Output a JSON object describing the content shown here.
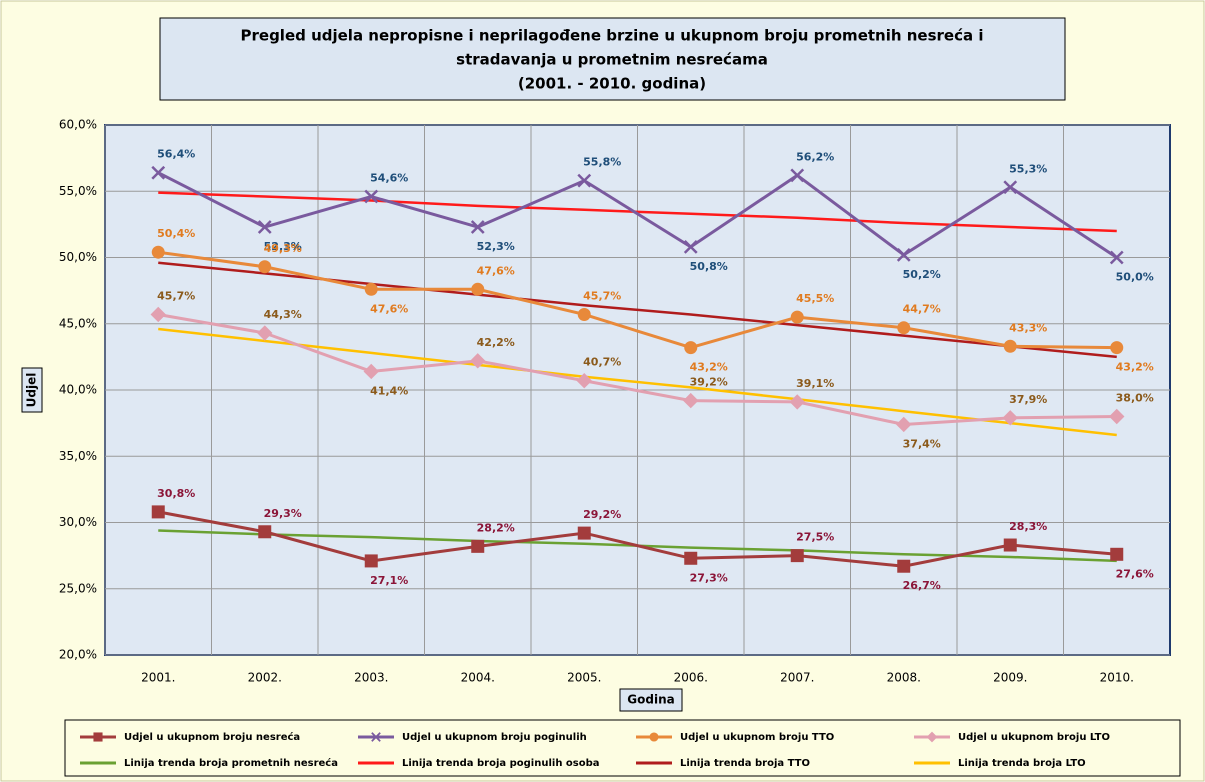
{
  "chart_data": {
    "type": "line",
    "title": "Pregled udjela nepropisne i neprilagođene brzine u ukupnom broju prometnih nesreća i",
    "title_line2": "stradavanja u prometnim nesrećama",
    "title_line3": "(2001. - 2010. godina)",
    "x_label": "Godina",
    "y_label": "Udjel",
    "categories": [
      "2001.",
      "2002.",
      "2003.",
      "2004.",
      "2005.",
      "2006.",
      "2007.",
      "2008.",
      "2009.",
      "2010."
    ],
    "ylim": [
      20,
      60
    ],
    "yticks": [
      {
        "value": 20,
        "label": "20,0%"
      },
      {
        "value": 25,
        "label": "25,0%"
      },
      {
        "value": 30,
        "label": "30,0%"
      },
      {
        "value": 35,
        "label": "35,0%"
      },
      {
        "value": 40,
        "label": "40,0%"
      },
      {
        "value": 45,
        "label": "45,0%"
      },
      {
        "value": 50,
        "label": "50,0%"
      },
      {
        "value": 55,
        "label": "55,0%"
      },
      {
        "value": 60,
        "label": "60,0%"
      }
    ],
    "grid": true,
    "legend": "bottom",
    "series": [
      {
        "name": "Udjel u ukupnom broju nesreća",
        "color": "#a33c3c",
        "marker": "square",
        "label_color": "#8b1538",
        "values": [
          30.8,
          29.3,
          27.1,
          28.2,
          29.2,
          27.3,
          27.5,
          26.7,
          28.3,
          27.6
        ],
        "value_labels": [
          "30,8%",
          "29,3%",
          "27,1%",
          "28,2%",
          "29,2%",
          "27,3%",
          "27,5%",
          "26,7%",
          "28,3%",
          "27,6%"
        ]
      },
      {
        "name": "Udjel u ukupnom broju poginulih",
        "color": "#7a5a9e",
        "marker": "x",
        "label_color": "#1f4e79",
        "values": [
          56.4,
          52.3,
          54.6,
          52.3,
          55.8,
          50.8,
          56.2,
          50.2,
          55.3,
          50.0
        ],
        "value_labels": [
          "56,4%",
          "52,3%",
          "54,6%",
          "52,3%",
          "55,8%",
          "50,8%",
          "56,2%",
          "50,2%",
          "55,3%",
          "50,0%"
        ]
      },
      {
        "name": "Udjel u ukupnom broju TTO",
        "color": "#e8893a",
        "marker": "circle",
        "label_color": "#e07b20",
        "values": [
          50.4,
          49.3,
          47.6,
          47.6,
          45.7,
          43.2,
          45.5,
          44.7,
          43.3,
          43.2
        ],
        "value_labels": [
          "50,4%",
          "49,3%",
          "47,6%",
          "47,6%",
          "45,7%",
          "43,2%",
          "45,5%",
          "44,7%",
          "43,3%",
          "43,2%"
        ]
      },
      {
        "name": "Udjel u ukupnom broju LTO",
        "color": "#e2a0b0",
        "marker": "diamond",
        "label_color": "#8b5a1b",
        "values": [
          45.7,
          44.3,
          41.4,
          42.2,
          40.7,
          39.2,
          39.1,
          37.4,
          37.9,
          38.0
        ],
        "value_labels": [
          "45,7%",
          "44,3%",
          "41,4%",
          "42,2%",
          "40,7%",
          "39,2%",
          "39,1%",
          "37,4%",
          "37,9%",
          "38,0%"
        ]
      },
      {
        "name": "Linija trenda broja prometnih nesreća",
        "color": "#6aa132",
        "values": [
          29.4,
          29.1,
          28.9,
          28.6,
          28.4,
          28.1,
          27.9,
          27.6,
          27.4,
          27.1
        ]
      },
      {
        "name": "Linija trenda broja poginulih osoba",
        "color": "#ff1a1a",
        "values": [
          54.9,
          54.6,
          54.3,
          53.9,
          53.6,
          53.3,
          53.0,
          52.6,
          52.3,
          52.0
        ]
      },
      {
        "name": "Linija trenda broja TTO",
        "color": "#b01c1c",
        "values": [
          49.6,
          48.8,
          48.0,
          47.2,
          46.4,
          45.7,
          44.9,
          44.1,
          43.3,
          42.5
        ]
      },
      {
        "name": "Linija trenda broja LTO",
        "color": "#ffc000",
        "values": [
          44.6,
          43.7,
          42.8,
          41.9,
          41.0,
          40.2,
          39.3,
          38.4,
          37.5,
          36.6
        ]
      }
    ]
  }
}
